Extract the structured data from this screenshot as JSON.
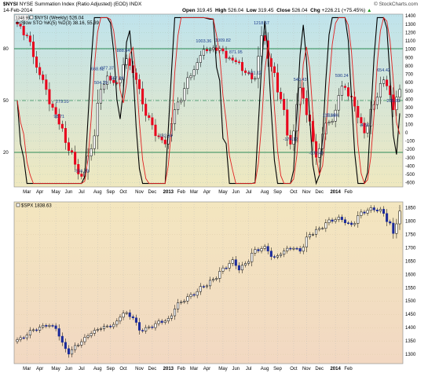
{
  "header": {
    "symbol": "$NYSI",
    "title": "NYSE Summation Index (Ratio Adjusted) (EOD)",
    "exchange": "INDX",
    "date": "14-Feb-2014",
    "watermark": "© StockCharts.com",
    "open_label": "Open",
    "open": "319.45",
    "high_label": "High",
    "high": "526.04",
    "low_label": "Low",
    "low": "319.45",
    "close_label": "Close",
    "close": "526.04",
    "chg_label": "Chg",
    "chg": "+226.21 (+75.45%)",
    "chg_arrow": "▲"
  },
  "colors": {
    "up": "#ffffff",
    "down": "#e8001c",
    "spx_up": "#ffffff",
    "spx_down": "#1a2a9a",
    "sto_k": "#000000",
    "sto_d": "#e02020",
    "grid": "#2e8b57"
  },
  "chart_data": [
    {
      "type": "candlestick",
      "legend": [
        "$NYSI (Weekly) 526.04",
        "Slow STO %K(5) %D(3) 38.16, 55.39"
      ],
      "badge": "1348.99",
      "y_right_ticks": [
        1400,
        1300,
        1200,
        1100,
        1000,
        900,
        800,
        700,
        600,
        500,
        400,
        300,
        200,
        100,
        0,
        -100,
        -200,
        -300,
        -400,
        -500,
        -600
      ],
      "y_left_ticks": [
        80,
        50,
        20
      ],
      "ylim": [
        -650,
        1420
      ],
      "annotations": [
        {
          "i": 14,
          "text": "279.20"
        },
        {
          "i": 13,
          "text": "98.71"
        },
        {
          "i": 20,
          "text": "-556.29"
        },
        {
          "i": 25,
          "text": "668.62"
        },
        {
          "i": 26,
          "text": "504.29"
        },
        {
          "i": 28,
          "text": "677.37"
        },
        {
          "i": 31,
          "text": "557.49"
        },
        {
          "i": 33,
          "text": "888.54"
        },
        {
          "i": 46,
          "text": "-132.34"
        },
        {
          "i": 58,
          "text": "1003.36"
        },
        {
          "i": 64,
          "text": "1009.82"
        },
        {
          "i": 68,
          "text": "871.95"
        },
        {
          "i": 74,
          "text": "621.12"
        },
        {
          "i": 76,
          "text": "1218.57"
        },
        {
          "i": 85,
          "text": "-174.12"
        },
        {
          "i": 88,
          "text": "540.43"
        },
        {
          "i": 93,
          "text": "-339.40"
        },
        {
          "i": 97,
          "text": "115.46"
        },
        {
          "i": 98,
          "text": "111.84"
        },
        {
          "i": 101,
          "text": "590.24"
        },
        {
          "i": 108,
          "text": "-4.56"
        },
        {
          "i": 114,
          "text": "654.42"
        },
        {
          "i": 117,
          "text": "285.89"
        }
      ]
    },
    {
      "type": "candlestick",
      "legend": [
        "$SPX 1838.63"
      ],
      "y_right_ticks": [
        1850,
        1800,
        1750,
        1700,
        1650,
        1600,
        1550,
        1500,
        1450,
        1400,
        1350,
        1300
      ],
      "ylim": [
        1265,
        1872
      ]
    }
  ],
  "x_axis": {
    "labels": [
      {
        "i": 3,
        "text": "Mar",
        "bold": false
      },
      {
        "i": 7,
        "text": "Apr",
        "bold": false
      },
      {
        "i": 12,
        "text": "May",
        "bold": false
      },
      {
        "i": 16,
        "text": "Jun",
        "bold": false
      },
      {
        "i": 20,
        "text": "Jul",
        "bold": false
      },
      {
        "i": 25,
        "text": "Aug",
        "bold": false
      },
      {
        "i": 29,
        "text": "Sep",
        "bold": false
      },
      {
        "i": 33,
        "text": "Oct",
        "bold": false
      },
      {
        "i": 38,
        "text": "Nov",
        "bold": false
      },
      {
        "i": 42,
        "text": "Dec",
        "bold": false
      },
      {
        "i": 47,
        "text": "2013",
        "bold": true
      },
      {
        "i": 51,
        "text": "Feb",
        "bold": false
      },
      {
        "i": 55,
        "text": "Mar",
        "bold": false
      },
      {
        "i": 59,
        "text": "Apr",
        "bold": false
      },
      {
        "i": 64,
        "text": "May",
        "bold": false
      },
      {
        "i": 68,
        "text": "Jun",
        "bold": false
      },
      {
        "i": 72,
        "text": "Jul",
        "bold": false
      },
      {
        "i": 77,
        "text": "Aug",
        "bold": false
      },
      {
        "i": 81,
        "text": "Sep",
        "bold": false
      },
      {
        "i": 86,
        "text": "Oct",
        "bold": false
      },
      {
        "i": 90,
        "text": "Nov",
        "bold": false
      },
      {
        "i": 94,
        "text": "Dec",
        "bold": false
      },
      {
        "i": 99,
        "text": "2014",
        "bold": true
      },
      {
        "i": 103,
        "text": "Feb",
        "bold": false
      }
    ]
  }
}
